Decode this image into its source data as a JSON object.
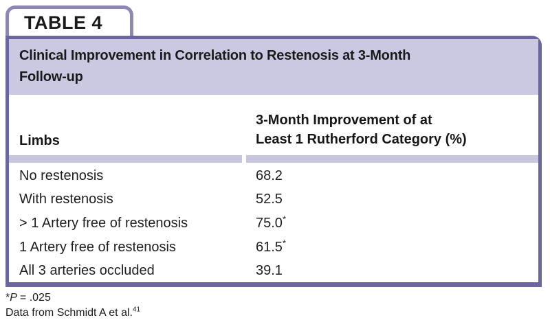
{
  "colors": {
    "band_lavender": "#cbc8e1",
    "separator_lavender": "#c8c5de",
    "box_border_purple": "#6b66a0",
    "tab_border_purple": "#8d87b6",
    "text": "#1a1a1a"
  },
  "tab": {
    "label": "TABLE 4"
  },
  "title": {
    "full": "Clinical Improvement in Correlation to Restenosis at 3-Month Follow-up",
    "line1": "Clinical Improvement in Correlation to Restenosis at 3-Month",
    "line2": "Follow-up"
  },
  "table": {
    "columns": {
      "col1": "Limbs",
      "col2_full": "3-Month Improvement of at Least 1 Rutherford Category (%)",
      "col2_line1": "3-Month Improvement of at",
      "col2_line2": "Least 1 Rutherford Category (%)"
    },
    "rows": [
      {
        "label": "No restenosis",
        "value": "68.2",
        "marker": ""
      },
      {
        "label": "With restenosis",
        "value": "52.5",
        "marker": ""
      },
      {
        "label": "> 1 Artery free of restenosis",
        "value": "75.0",
        "marker": "*"
      },
      {
        "label": "1 Artery free of restenosis",
        "value": "61.5",
        "marker": "*"
      },
      {
        "label": "All 3 arteries occluded",
        "value": "39.1",
        "marker": ""
      }
    ]
  },
  "footnotes": {
    "p_marker": "*",
    "p_symbol": "P",
    "p_rest": "= .025",
    "source_text": "Data from Schmidt A et al.",
    "source_ref": "41"
  },
  "chart_data": {
    "type": "table",
    "title": "Clinical Improvement in Correlation to Restenosis at 3-Month Follow-up",
    "columns": [
      "Limbs",
      "3-Month Improvement of at Least 1 Rutherford Category (%)"
    ],
    "rows": [
      [
        "No restenosis",
        "68.2"
      ],
      [
        "With restenosis",
        "52.5"
      ],
      [
        "> 1 Artery free of restenosis",
        "75.0*"
      ],
      [
        "1 Artery free of restenosis",
        "61.5*"
      ],
      [
        "All 3 arteries occluded",
        "39.1"
      ]
    ],
    "footnotes": [
      "*P = .025",
      "Data from Schmidt A et al.41"
    ]
  }
}
